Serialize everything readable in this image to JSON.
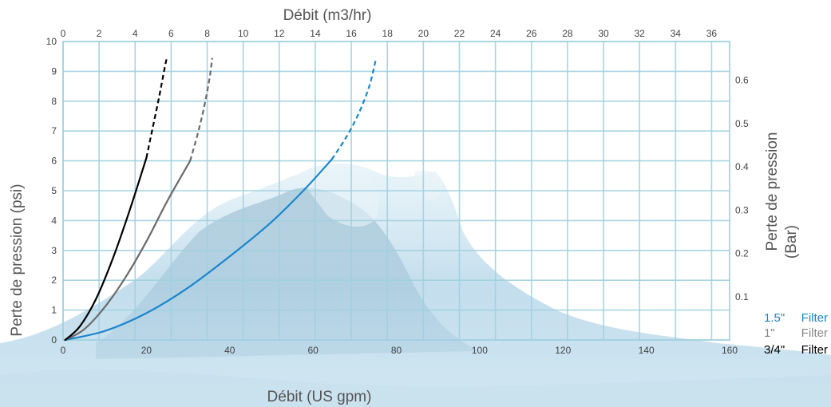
{
  "chart_data": {
    "type": "line",
    "title": "",
    "xlabel_bottom": "Débit (US gpm)",
    "xlabel_top": "Débit (m3/hr)",
    "ylabel_left": "Perte de pression (psi)",
    "ylabel_right_line1": "Perte de pression",
    "ylabel_right_line2": "(Bar)",
    "x_bottom_range": [
      0,
      160
    ],
    "x_bottom_ticks": [
      "0",
      "20",
      "40",
      "60",
      "80",
      "100",
      "120",
      "140",
      "160"
    ],
    "x_top_range": [
      0,
      37
    ],
    "x_top_ticks": [
      "0",
      "2",
      "4",
      "6",
      "8",
      "10",
      "12",
      "14",
      "16",
      "18",
      "20",
      "22",
      "24",
      "26",
      "28",
      "30",
      "32",
      "34",
      "36"
    ],
    "y_left_range": [
      0,
      10
    ],
    "y_left_ticks": [
      "0",
      "1",
      "2",
      "3",
      "4",
      "5",
      "6",
      "7",
      "8",
      "9",
      "10"
    ],
    "y_right_ticks": [
      {
        "label": "0.1",
        "psi": 1.45
      },
      {
        "label": "0.2",
        "psi": 2.9
      },
      {
        "label": "0.3",
        "psi": 4.35
      },
      {
        "label": "0.4",
        "psi": 5.8
      },
      {
        "label": "0.5",
        "psi": 7.25
      },
      {
        "label": "0.6",
        "psi": 8.7
      }
    ],
    "grid": true,
    "legend_position": "bottom-right",
    "series": [
      {
        "name": "1.5\" Filter",
        "legend_prefix": "1.5\"",
        "legend_suffix": "Filter",
        "color": "#1a86cc",
        "solid": [
          [
            0.5,
            0
          ],
          [
            10,
            0.3
          ],
          [
            20,
            0.9
          ],
          [
            30,
            1.75
          ],
          [
            40,
            2.8
          ],
          [
            50,
            3.95
          ],
          [
            58,
            5.05
          ],
          [
            64.5,
            6.05
          ]
        ],
        "dashed": [
          [
            64.5,
            6.05
          ],
          [
            68,
            6.8
          ],
          [
            71,
            7.6
          ],
          [
            73.5,
            8.5
          ],
          [
            75,
            9.35
          ]
        ]
      },
      {
        "name": "1\" Filter",
        "legend_prefix": "1\"",
        "legend_suffix": "Filter",
        "color": "#6a6a6a",
        "solid": [
          [
            0.5,
            0
          ],
          [
            5,
            0.35
          ],
          [
            10,
            1.1
          ],
          [
            15,
            2.1
          ],
          [
            20,
            3.3
          ],
          [
            25,
            4.65
          ],
          [
            30.5,
            6.0
          ]
        ],
        "dashed": [
          [
            30.5,
            6.0
          ],
          [
            32.5,
            7.0
          ],
          [
            34,
            7.9
          ],
          [
            35.2,
            8.8
          ],
          [
            35.8,
            9.45
          ]
        ]
      },
      {
        "name": "3/4\" Filter",
        "legend_prefix": "3/4\"",
        "legend_suffix": "Filter",
        "color": "#000000",
        "solid": [
          [
            0.5,
            0
          ],
          [
            4,
            0.45
          ],
          [
            8,
            1.4
          ],
          [
            12,
            2.75
          ],
          [
            16,
            4.35
          ],
          [
            20,
            6.1
          ]
        ],
        "dashed": [
          [
            20,
            6.1
          ],
          [
            21.5,
            7.1
          ],
          [
            23,
            8.1
          ],
          [
            24.3,
            9.05
          ],
          [
            24.9,
            9.45
          ]
        ]
      }
    ]
  }
}
